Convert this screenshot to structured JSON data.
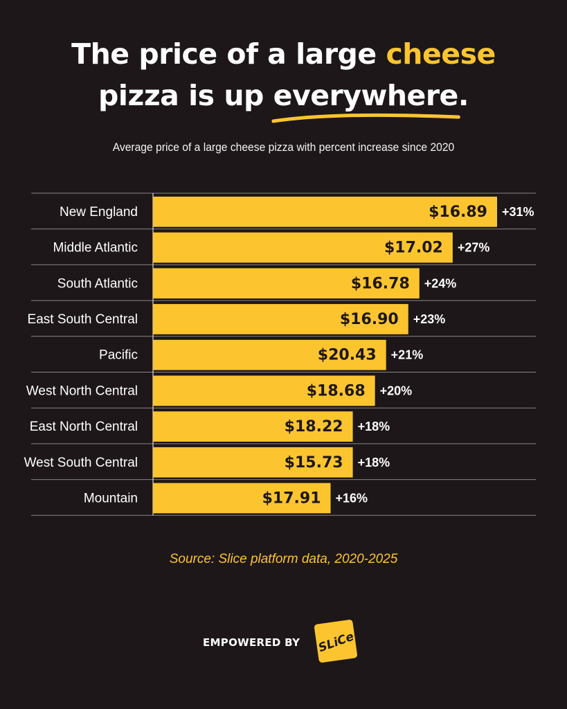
{
  "headline": {
    "line1_before": "The price of a large ",
    "line1_highlight": "cheese",
    "line2_before": "pizza is up ",
    "line2_underlined": "everywhere",
    "line2_after": "."
  },
  "subtitle": "Average price of a large cheese pizza with percent increase since 2020",
  "colors": {
    "background": "#1d1719",
    "accent": "#fcc52f",
    "text": "#ffffff"
  },
  "chart_data": {
    "type": "bar",
    "orientation": "horizontal",
    "title": "Average price of a large cheese pizza with percent increase since 2020",
    "categories": [
      "New England",
      "Middle Atlantic",
      "South Atlantic",
      "East South Central",
      "Pacific",
      "West North Central",
      "East North Central",
      "West South Central",
      "Mountain"
    ],
    "values": [
      31,
      27,
      24,
      23,
      21,
      20,
      18,
      18,
      16
    ],
    "value_labels": [
      "+31%",
      "+27%",
      "+24%",
      "+23%",
      "+21%",
      "+20%",
      "+18%",
      "+18%",
      "+16%"
    ],
    "prices": [
      "$16.89",
      "$17.02",
      "$16.78",
      "$16.90",
      "$20.43",
      "$18.68",
      "$18.22",
      "$15.73",
      "$17.91"
    ],
    "xlim": [
      0,
      32
    ],
    "grid": false,
    "legend": "none"
  },
  "source": "Source: Slice platform data, 2020-2025",
  "footer": {
    "empowered_label": "EMPOWERED BY",
    "logo_text": "SLiCe"
  }
}
